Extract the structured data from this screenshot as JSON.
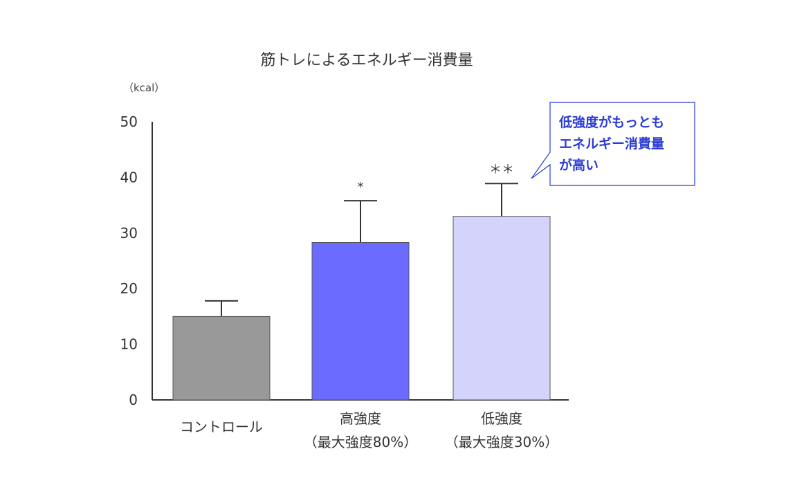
{
  "chart_data": {
    "type": "bar",
    "title": "筋トレによるエネルギー消費量",
    "unit_label": "（kcal）",
    "ylim": [
      0,
      50
    ],
    "yticks": [
      "0",
      "10",
      "20",
      "30",
      "40",
      "50"
    ],
    "categories": [
      {
        "line1": "コントロール",
        "line2": ""
      },
      {
        "line1": "高強度",
        "line2": "（最大強度80%）"
      },
      {
        "line1": "低強度",
        "line2": "（最大強度30%）"
      }
    ],
    "values": [
      15,
      28.3,
      33
    ],
    "error_upper": [
      17.8,
      35.8,
      38.9
    ],
    "significance": [
      "",
      "*",
      "＊＊"
    ],
    "colors": [
      "#999999",
      "#6b6bff",
      "#d3d3fb"
    ],
    "grid": false
  },
  "callout": {
    "lines": [
      "低強度がもっとも",
      "エネルギー消費量",
      "が高い"
    ],
    "text_color": "#2b3bd6",
    "border_color": "#2b3bd6"
  }
}
